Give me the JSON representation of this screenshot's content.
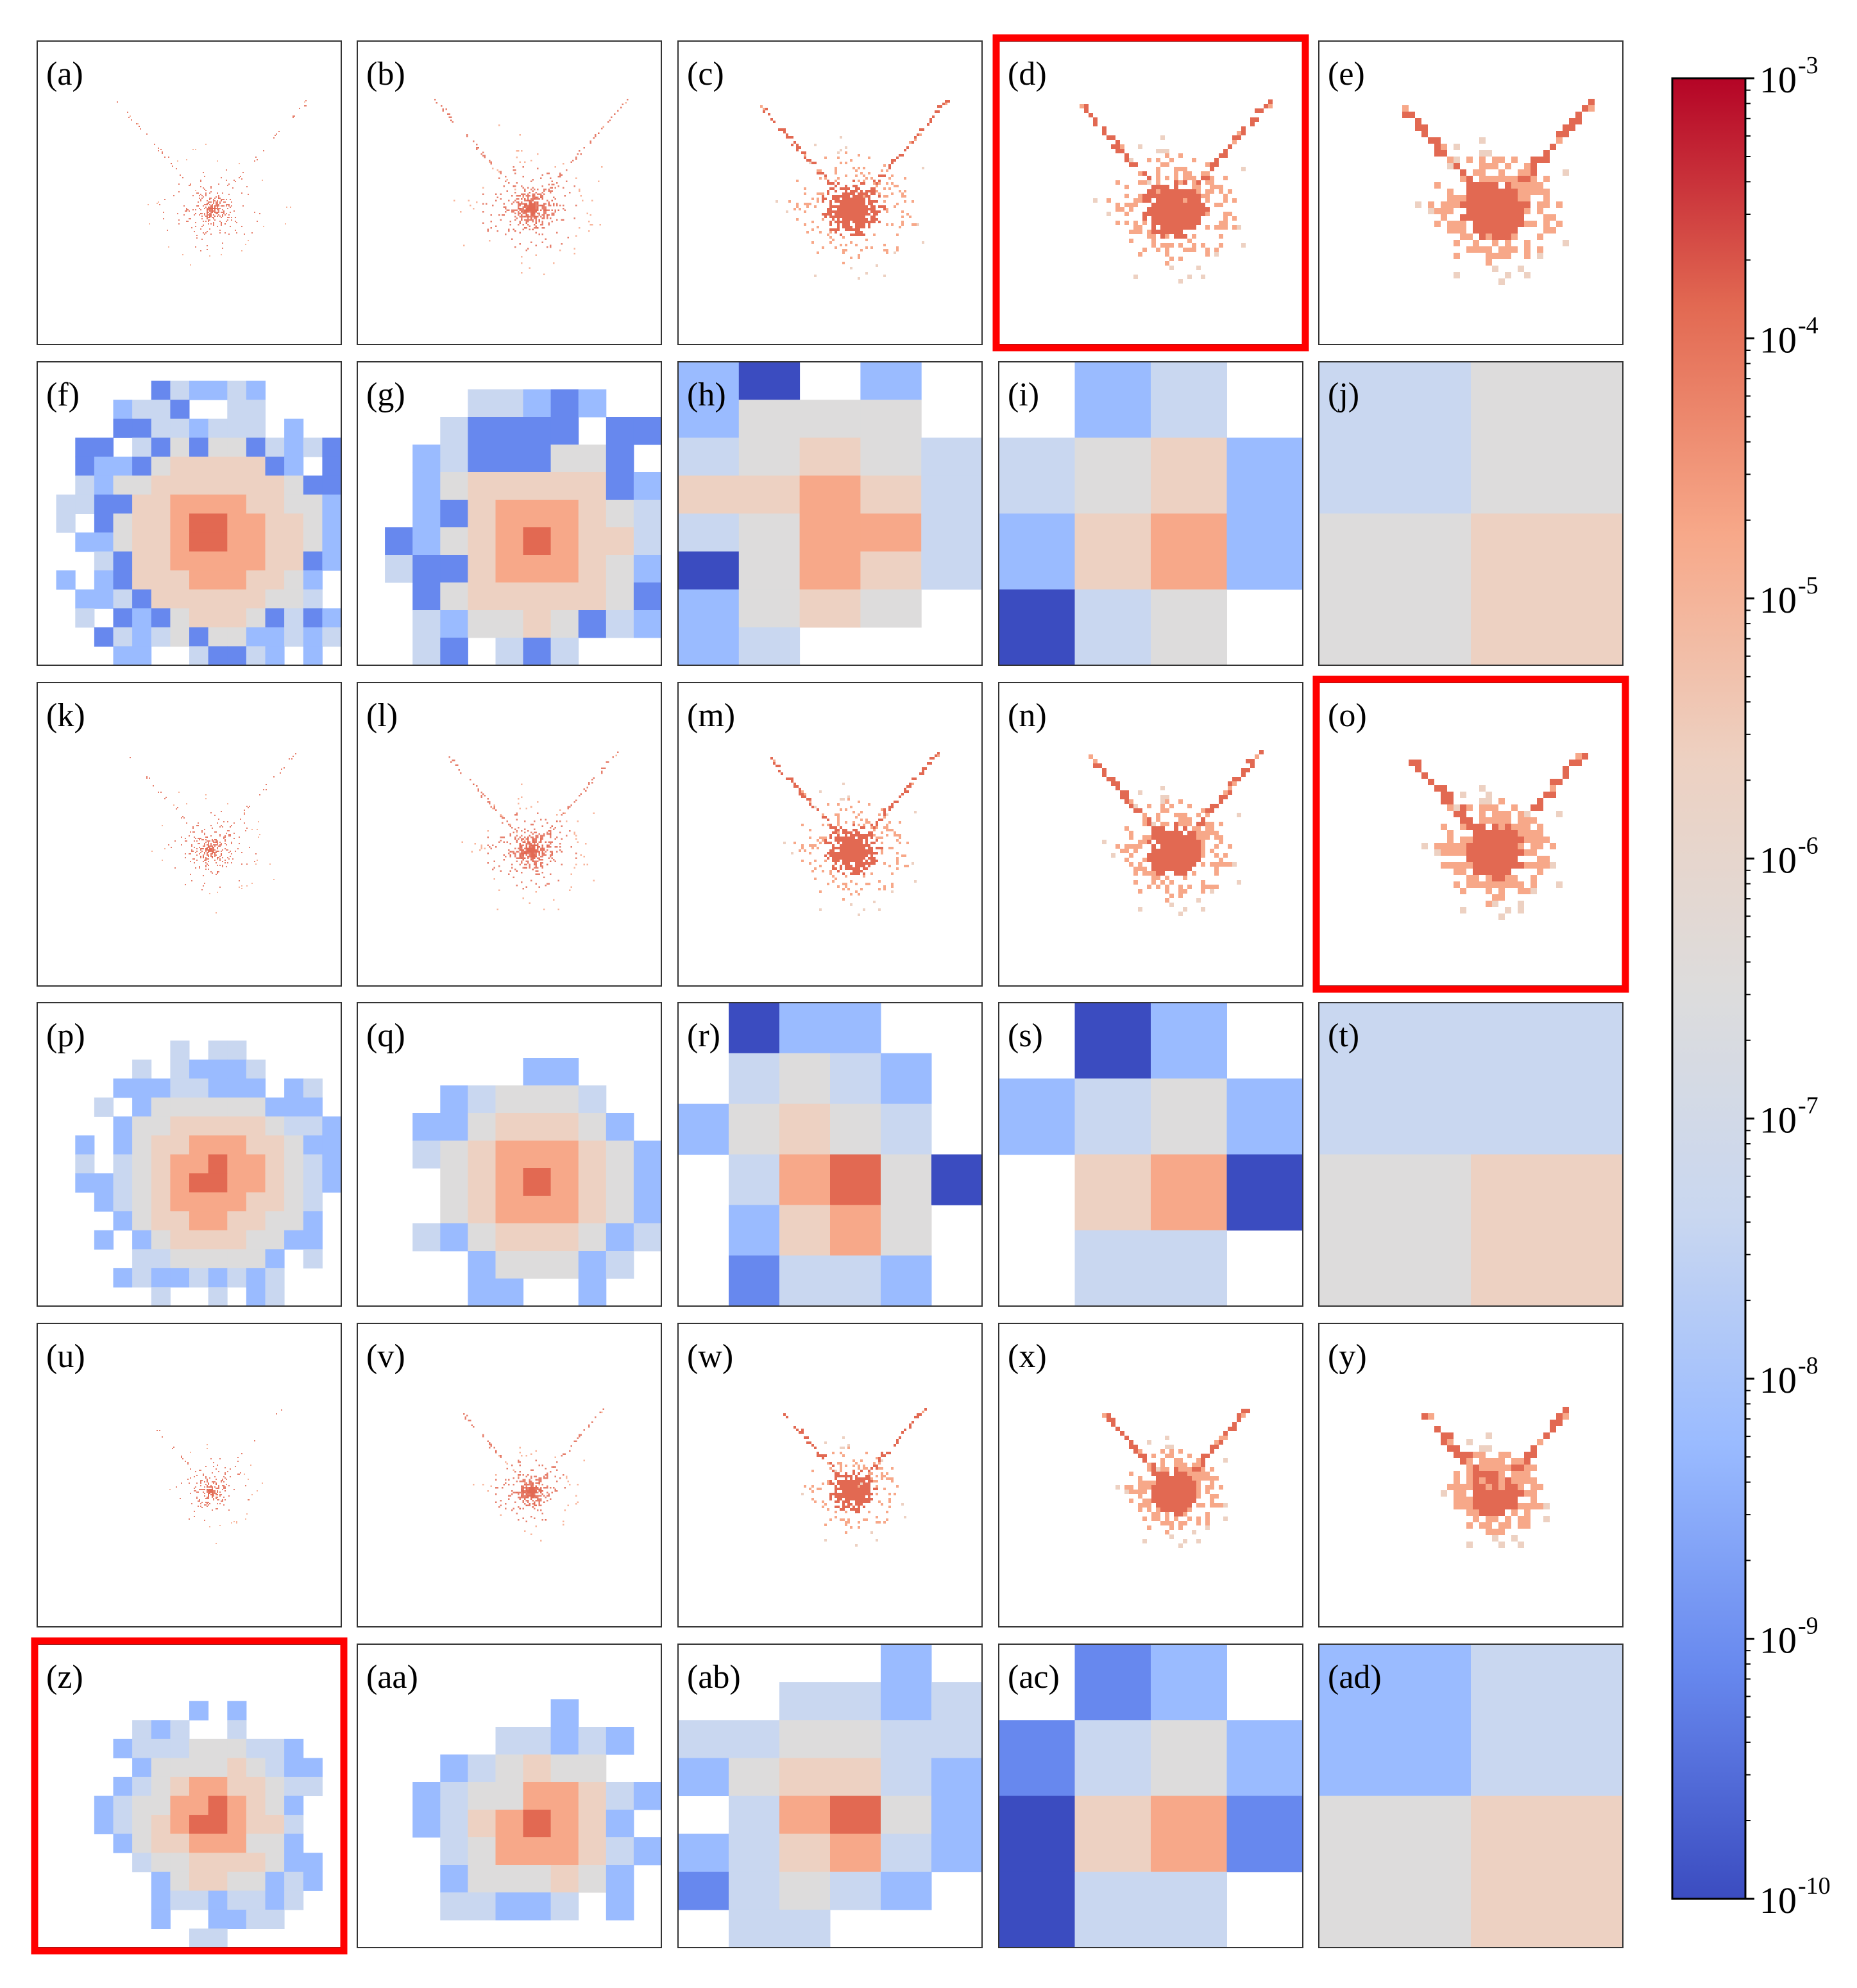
{
  "chart_data": {
    "type": "heatmap",
    "title": "",
    "grid_rows": 6,
    "grid_cols": 5,
    "colorbar": {
      "scale": "log",
      "colormap": "coolwarm",
      "range": [
        "1e-10",
        "1e-3"
      ],
      "ticks": [
        {
          "base": "10",
          "exp": "-3"
        },
        {
          "base": "10",
          "exp": "-4"
        },
        {
          "base": "10",
          "exp": "-5"
        },
        {
          "base": "10",
          "exp": "-6"
        },
        {
          "base": "10",
          "exp": "-7"
        },
        {
          "base": "10",
          "exp": "-8"
        },
        {
          "base": "10",
          "exp": "-9"
        },
        {
          "base": "10",
          "exp": "-10"
        }
      ],
      "colors": [
        "#3b4cc0",
        "#6788ee",
        "#9abbff",
        "#c9d7f0",
        "#dddcdc",
        "#edd1c2",
        "#f7a889",
        "#e26952",
        "#b40426"
      ]
    },
    "highlight_color": "#ff0000",
    "panels": [
      {
        "label": "(a)",
        "group": 0,
        "level": 0,
        "highlighted": false
      },
      {
        "label": "(b)",
        "group": 0,
        "level": 1,
        "highlighted": false
      },
      {
        "label": "(c)",
        "group": 0,
        "level": 2,
        "highlighted": false
      },
      {
        "label": "(d)",
        "group": 0,
        "level": 3,
        "highlighted": true
      },
      {
        "label": "(e)",
        "group": 0,
        "level": 4,
        "highlighted": false
      },
      {
        "label": "(f)",
        "group": 0,
        "level": 5,
        "highlighted": false
      },
      {
        "label": "(g)",
        "group": 0,
        "level": 6,
        "highlighted": false
      },
      {
        "label": "(h)",
        "group": 0,
        "level": 7,
        "highlighted": false
      },
      {
        "label": "(i)",
        "group": 0,
        "level": 8,
        "highlighted": false
      },
      {
        "label": "(j)",
        "group": 0,
        "level": 9,
        "highlighted": false
      },
      {
        "label": "(k)",
        "group": 1,
        "level": 0,
        "highlighted": false
      },
      {
        "label": "(l)",
        "group": 1,
        "level": 1,
        "highlighted": false
      },
      {
        "label": "(m)",
        "group": 1,
        "level": 2,
        "highlighted": false
      },
      {
        "label": "(n)",
        "group": 1,
        "level": 3,
        "highlighted": false
      },
      {
        "label": "(o)",
        "group": 1,
        "level": 4,
        "highlighted": true
      },
      {
        "label": "(p)",
        "group": 1,
        "level": 5,
        "highlighted": false
      },
      {
        "label": "(q)",
        "group": 1,
        "level": 6,
        "highlighted": false
      },
      {
        "label": "(r)",
        "group": 1,
        "level": 7,
        "highlighted": false
      },
      {
        "label": "(s)",
        "group": 1,
        "level": 8,
        "highlighted": false
      },
      {
        "label": "(t)",
        "group": 1,
        "level": 9,
        "highlighted": false
      },
      {
        "label": "(u)",
        "group": 2,
        "level": 0,
        "highlighted": false
      },
      {
        "label": "(v)",
        "group": 2,
        "level": 1,
        "highlighted": false
      },
      {
        "label": "(w)",
        "group": 2,
        "level": 2,
        "highlighted": false
      },
      {
        "label": "(x)",
        "group": 2,
        "level": 3,
        "highlighted": false
      },
      {
        "label": "(y)",
        "group": 2,
        "level": 4,
        "highlighted": false
      },
      {
        "label": "(z)",
        "group": 2,
        "level": 5,
        "highlighted": true
      },
      {
        "label": "(aa)",
        "group": 2,
        "level": 6,
        "highlighted": false
      },
      {
        "label": "(ab)",
        "group": 2,
        "level": 7,
        "highlighted": false
      },
      {
        "label": "(ac)",
        "group": 2,
        "level": 8,
        "highlighted": false
      },
      {
        "label": "(ad)",
        "group": 2,
        "level": 9,
        "highlighted": false
      }
    ],
    "grids": {
      "h": [
        [
          2,
          0,
          null,
          2,
          null
        ],
        [
          2,
          4,
          4,
          4,
          null
        ],
        [
          3,
          4,
          5,
          4,
          3
        ],
        [
          5,
          5,
          6,
          5,
          3
        ],
        [
          3,
          4,
          6,
          6,
          3
        ],
        [
          0,
          4,
          6,
          5,
          3
        ],
        [
          2,
          4,
          5,
          4,
          null
        ],
        [
          2,
          3,
          null,
          null,
          null
        ]
      ],
      "i": [
        [
          null,
          2,
          3,
          null
        ],
        [
          3,
          4,
          5,
          2
        ],
        [
          2,
          5,
          6,
          2
        ],
        [
          0,
          3,
          4,
          null
        ]
      ],
      "j": [
        [
          3,
          4
        ],
        [
          4,
          5
        ]
      ],
      "r": [
        [
          null,
          0,
          2,
          2,
          null,
          null
        ],
        [
          null,
          3,
          4,
          3,
          2,
          null
        ],
        [
          2,
          4,
          5,
          4,
          3,
          null
        ],
        [
          null,
          3,
          6,
          7,
          4,
          0
        ],
        [
          null,
          2,
          5,
          6,
          4,
          null
        ],
        [
          null,
          1,
          3,
          3,
          2,
          null
        ]
      ],
      "s": [
        [
          null,
          0,
          2,
          null
        ],
        [
          2,
          3,
          4,
          2
        ],
        [
          null,
          5,
          6,
          0
        ],
        [
          null,
          3,
          3,
          null
        ]
      ],
      "t": [
        [
          3,
          3
        ],
        [
          4,
          5
        ]
      ],
      "ab": [
        [
          null,
          null,
          null,
          null,
          2,
          null
        ],
        [
          null,
          null,
          3,
          3,
          2,
          3
        ],
        [
          3,
          3,
          4,
          4,
          3,
          3
        ],
        [
          2,
          4,
          5,
          5,
          3,
          2
        ],
        [
          null,
          3,
          6,
          7,
          4,
          2
        ],
        [
          2,
          3,
          5,
          6,
          3,
          2
        ],
        [
          1,
          3,
          4,
          3,
          2,
          null
        ],
        [
          null,
          3,
          3,
          null,
          null,
          null
        ]
      ],
      "ac": [
        [
          null,
          1,
          2,
          null
        ],
        [
          1,
          3,
          4,
          2
        ],
        [
          0,
          5,
          6,
          1
        ],
        [
          0,
          3,
          3,
          null
        ]
      ],
      "ad": [
        [
          2,
          3
        ],
        [
          4,
          5
        ]
      ]
    }
  }
}
